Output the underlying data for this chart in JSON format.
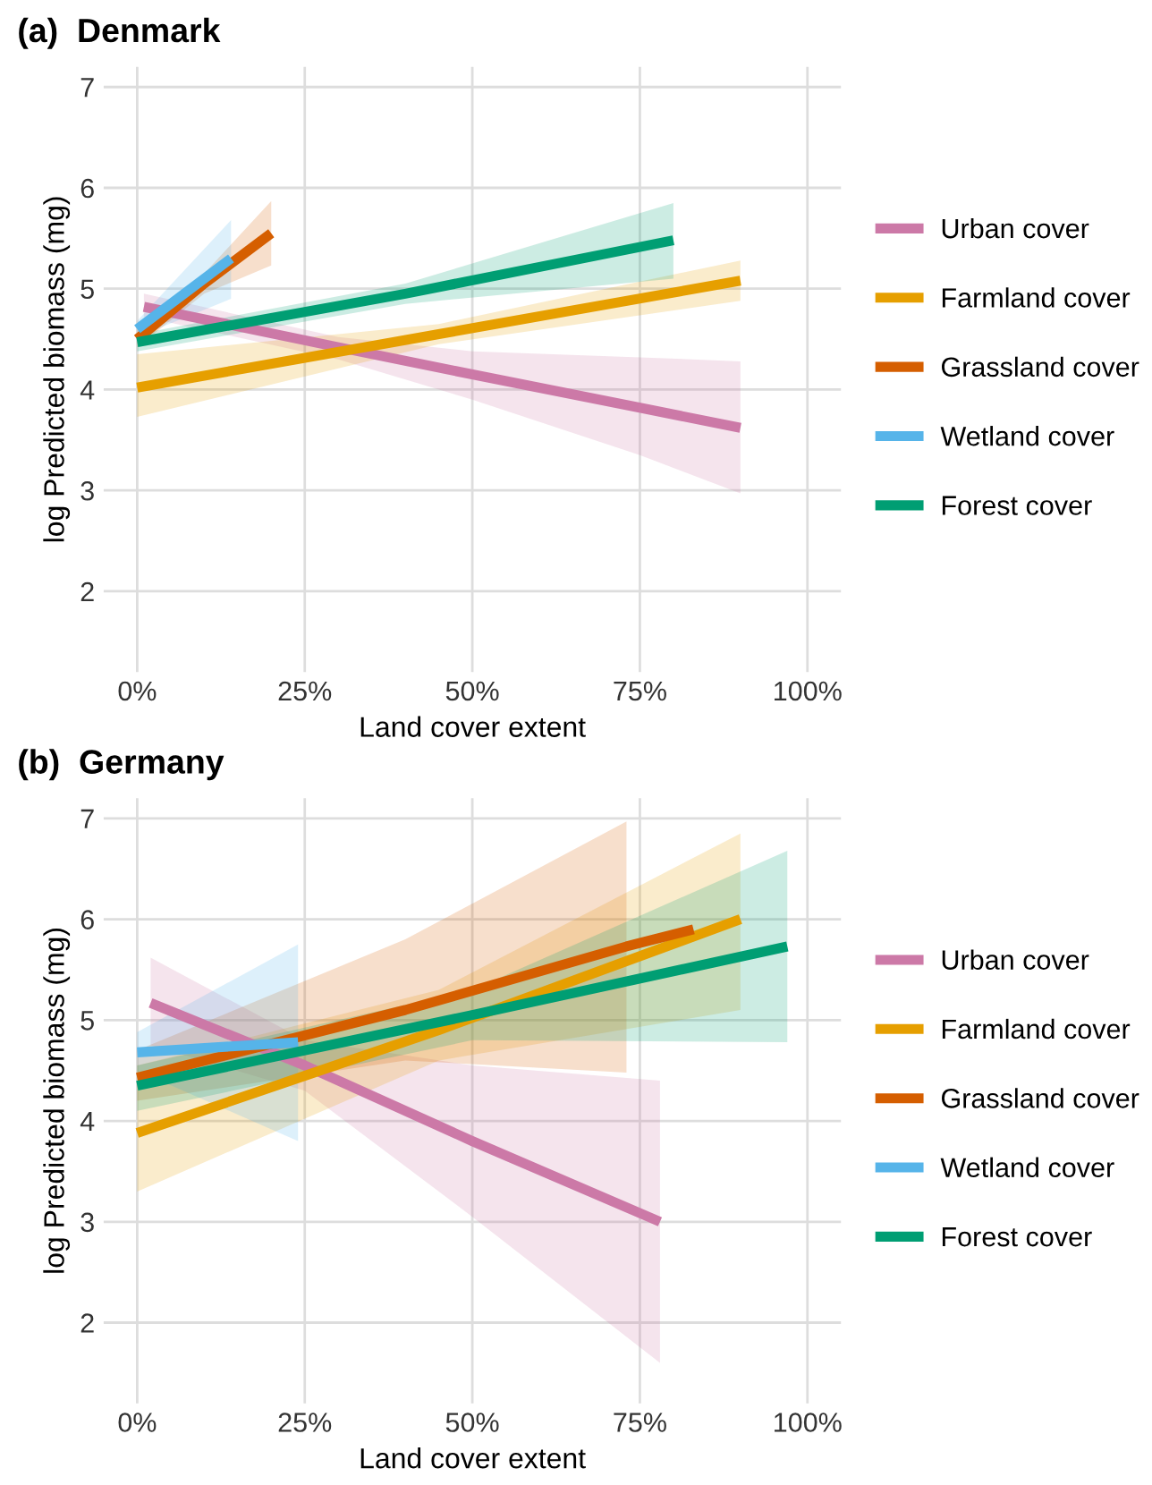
{
  "chart_data": [
    {
      "type": "line",
      "title": "(a)  Denmark",
      "xlabel": "Land cover extent",
      "ylabel": "log Predicted biomass (mg)",
      "xlim": [
        -5,
        105
      ],
      "ylim": [
        1.2,
        7.2
      ],
      "xticks": [
        {
          "value": 0,
          "label": "0%"
        },
        {
          "value": 25,
          "label": "25%"
        },
        {
          "value": 50,
          "label": "50%"
        },
        {
          "value": 75,
          "label": "75%"
        },
        {
          "value": 100,
          "label": "100%"
        }
      ],
      "yticks": [
        2,
        3,
        4,
        5,
        6,
        7
      ],
      "grid": true,
      "legend": "right",
      "marker": "none",
      "line_style": "solid",
      "series": [
        {
          "name": "Urban cover",
          "color": "#cc79a7",
          "x": [
            1,
            30,
            50,
            75,
            90
          ],
          "values": [
            4.82,
            4.42,
            4.15,
            3.82,
            3.62
          ],
          "lower": [
            4.72,
            4.3,
            3.9,
            3.35,
            2.97
          ],
          "upper": [
            4.95,
            4.52,
            4.38,
            4.32,
            4.28
          ]
        },
        {
          "name": "Farmland cover",
          "color": "#e69f00",
          "x": [
            0,
            45,
            90
          ],
          "values": [
            4.02,
            4.55,
            5.08
          ],
          "lower": [
            3.73,
            4.45,
            4.88
          ],
          "upper": [
            4.35,
            4.65,
            5.28
          ]
        },
        {
          "name": "Grassland cover",
          "color": "#d55e00",
          "x": [
            0,
            10,
            20
          ],
          "values": [
            4.5,
            5.05,
            5.55
          ],
          "lower": [
            4.42,
            4.95,
            5.23
          ],
          "upper": [
            4.6,
            5.15,
            5.87
          ]
        },
        {
          "name": "Wetland cover",
          "color": "#56b4e9",
          "x": [
            0,
            14
          ],
          "values": [
            4.6,
            5.3
          ],
          "lower": [
            4.52,
            4.9
          ],
          "upper": [
            4.68,
            5.68
          ]
        },
        {
          "name": "Forest cover",
          "color": "#009e73",
          "x": [
            0,
            40,
            80
          ],
          "values": [
            4.47,
            4.95,
            5.48
          ],
          "lower": [
            4.38,
            4.85,
            5.1
          ],
          "upper": [
            4.55,
            5.05,
            5.85
          ]
        }
      ]
    },
    {
      "type": "line",
      "title": "(b)  Germany",
      "xlabel": "Land cover extent",
      "ylabel": "log Predicted biomass (mg)",
      "xlim": [
        -5,
        105
      ],
      "ylim": [
        1.2,
        7.2
      ],
      "xticks": [
        {
          "value": 0,
          "label": "0%"
        },
        {
          "value": 25,
          "label": "25%"
        },
        {
          "value": 50,
          "label": "50%"
        },
        {
          "value": 75,
          "label": "75%"
        },
        {
          "value": 100,
          "label": "100%"
        }
      ],
      "yticks": [
        2,
        3,
        4,
        5,
        6,
        7
      ],
      "grid": true,
      "legend": "right",
      "marker": "none",
      "line_style": "solid",
      "series": [
        {
          "name": "Urban cover",
          "color": "#cc79a7",
          "x": [
            2,
            25,
            50,
            78
          ],
          "values": [
            5.17,
            4.55,
            3.8,
            3.0
          ],
          "lower": [
            4.75,
            4.3,
            3.05,
            1.6
          ],
          "upper": [
            5.62,
            4.8,
            4.55,
            4.4
          ]
        },
        {
          "name": "Farmland cover",
          "color": "#e69f00",
          "x": [
            0,
            45,
            90
          ],
          "values": [
            3.88,
            4.9,
            6.0
          ],
          "lower": [
            3.3,
            4.6,
            5.1
          ],
          "upper": [
            4.55,
            5.3,
            6.85
          ]
        },
        {
          "name": "Grassland cover",
          "color": "#d55e00",
          "x": [
            0,
            40,
            73,
            83
          ],
          "values": [
            4.43,
            5.1,
            5.73,
            5.9
          ],
          "lower": [
            4.2,
            4.6,
            4.48,
            null
          ],
          "upper": [
            4.7,
            5.8,
            6.97,
            null
          ]
        },
        {
          "name": "Wetland cover",
          "color": "#56b4e9",
          "x": [
            0,
            24
          ],
          "values": [
            4.68,
            4.78
          ],
          "lower": [
            4.5,
            3.8
          ],
          "upper": [
            4.88,
            5.75
          ]
        },
        {
          "name": "Forest cover",
          "color": "#009e73",
          "x": [
            0,
            50,
            97
          ],
          "values": [
            4.35,
            5.05,
            5.73
          ],
          "lower": [
            4.1,
            4.8,
            4.78
          ],
          "upper": [
            4.55,
            5.3,
            6.68
          ]
        }
      ]
    }
  ]
}
